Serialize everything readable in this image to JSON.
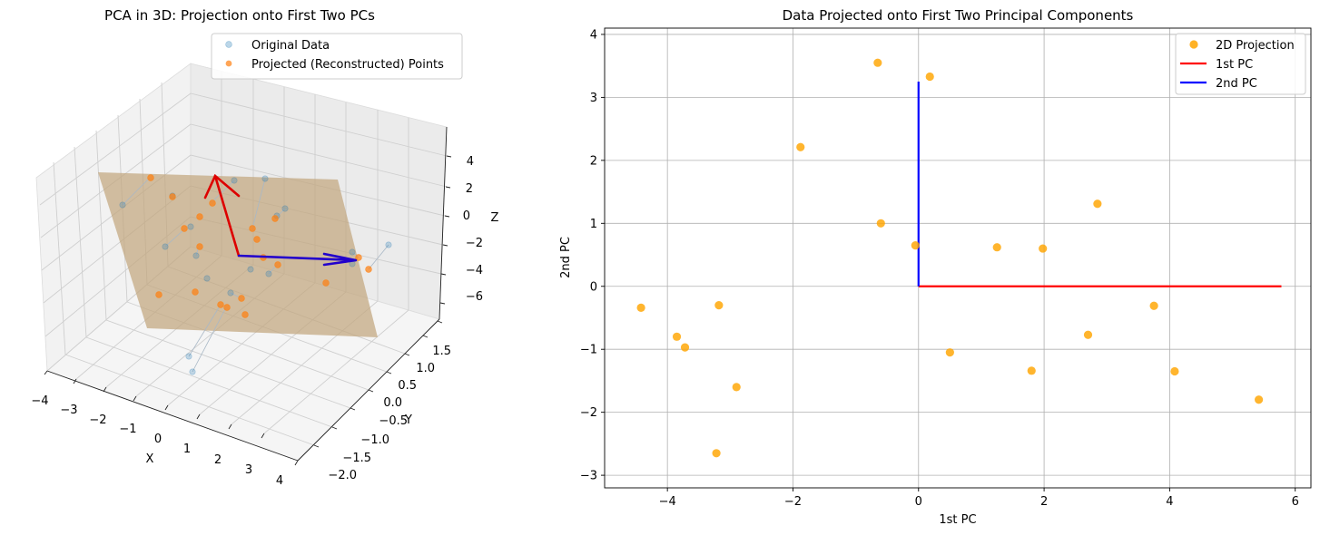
{
  "chart_data": [
    {
      "type": "scatter3d",
      "title": "PCA in 3D: Projection onto First Two PCs",
      "xlabel": "X",
      "ylabel": "Y",
      "zlabel": "Z",
      "xticks": [
        "−4",
        "−3",
        "−2",
        "−1",
        "0",
        "1",
        "2",
        "3",
        "4"
      ],
      "yticks": [
        "−2.0",
        "−1.5",
        "−1.0",
        "−0.5",
        "0.0",
        "0.5",
        "1.0",
        "1.5"
      ],
      "zticks": [
        "−6",
        "−4",
        "−2",
        "0",
        "2",
        "4"
      ],
      "legend": [
        {
          "label": "Original Data",
          "color": "#1f77b4"
        },
        {
          "label": "Projected (Reconstructed) Points",
          "color": "#ff7f0e"
        }
      ],
      "plane_color": "#c2a67e",
      "pc_arrow_colors": [
        "#dd0000",
        "#2200cc"
      ]
    },
    {
      "type": "scatter",
      "title": "Data Projected onto First Two Principal Components",
      "xlabel": "1st PC",
      "ylabel": "2nd PC",
      "xlim": [
        -5.0,
        6.25
      ],
      "ylim": [
        -3.2,
        4.1
      ],
      "xticks": [
        -4,
        -2,
        0,
        2,
        4,
        6
      ],
      "yticks": [
        -3,
        -2,
        -1,
        0,
        1,
        2,
        3,
        4
      ],
      "grid": true,
      "legend_position": "top-right",
      "series": [
        {
          "name": "2D Projection",
          "kind": "points",
          "color": "#ffa500",
          "x": [
            -0.65,
            0.18,
            -1.88,
            2.85,
            -0.6,
            -0.05,
            1.25,
            1.98,
            -4.42,
            -3.18,
            3.75,
            -3.85,
            -3.72,
            2.7,
            0.5,
            1.8,
            4.08,
            -2.9,
            5.42,
            -3.22
          ],
          "y": [
            3.55,
            3.33,
            2.21,
            1.31,
            1.0,
            0.65,
            0.62,
            0.6,
            -0.34,
            -0.3,
            -0.31,
            -0.8,
            -0.97,
            -0.77,
            -1.05,
            -1.34,
            -1.35,
            -1.6,
            -1.8,
            -2.65
          ]
        },
        {
          "name": "1st PC",
          "kind": "line",
          "color": "#ff0000",
          "x": [
            0,
            5.78
          ],
          "y": [
            0,
            0
          ]
        },
        {
          "name": "2nd PC",
          "kind": "line",
          "color": "#0000ff",
          "x": [
            0,
            0
          ],
          "y": [
            0,
            3.25
          ]
        }
      ]
    }
  ]
}
